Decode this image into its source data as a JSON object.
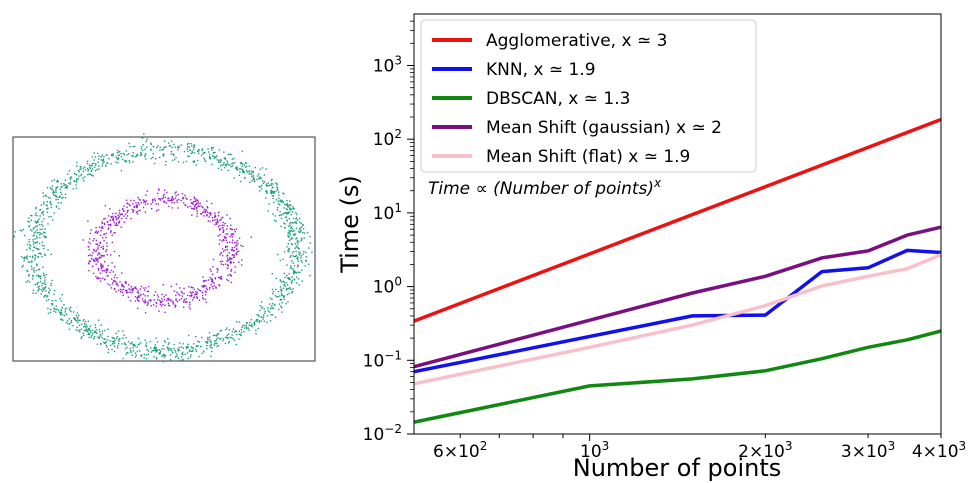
{
  "chart_data": [
    {
      "type": "scatter",
      "title": "",
      "axes_visible": false,
      "series": [
        {
          "name": "",
          "color": "#1a9e77",
          "shape": "outer-ring",
          "radius_x": 1.0,
          "radius_y": 1.0,
          "count": 1500
        },
        {
          "name": "",
          "color": "#9b1fd1",
          "shape": "inner-ring",
          "radius_x": 0.5,
          "radius_y": 0.5,
          "count": 800
        }
      ]
    },
    {
      "type": "line",
      "title": "",
      "xlabel": "Number of points",
      "ylabel": "Time (s)",
      "xscale": "log",
      "yscale": "log",
      "xlim": [
        500,
        4000
      ],
      "ylim": [
        0.01,
        5000
      ],
      "x_major_ticks": [
        {
          "value": 1000,
          "mant": "10",
          "exp": "3"
        }
      ],
      "x_minor_tick_values": [
        600,
        700,
        800,
        900,
        2000,
        3000,
        4000
      ],
      "x_minor_labels": [
        {
          "value": 600,
          "mant": "6×10",
          "exp": "2"
        },
        {
          "value": 2000,
          "mant": "2×10",
          "exp": "3"
        },
        {
          "value": 3000,
          "mant": "3×10",
          "exp": "3"
        },
        {
          "value": 4000,
          "mant": "4×10",
          "exp": "3"
        }
      ],
      "y_ticks": [
        {
          "value": 0.01,
          "mant": "10",
          "exp": "−2"
        },
        {
          "value": 0.1,
          "mant": "10",
          "exp": "−1"
        },
        {
          "value": 1,
          "mant": "10",
          "exp": "0"
        },
        {
          "value": 10,
          "mant": "10",
          "exp": "1"
        },
        {
          "value": 100,
          "mant": "10",
          "exp": "2"
        },
        {
          "value": 1000,
          "mant": "10",
          "exp": "3"
        }
      ],
      "legend_position": "upper-left",
      "annotation": "Time ∝ (Number of points)",
      "annotation_exp": "x",
      "series": [
        {
          "name": "Agglomerative, x ≃ 3",
          "color": "#ee1111",
          "x": [
            500,
            4000
          ],
          "y": [
            0.34,
            185
          ]
        },
        {
          "name": "KNN, x ≃ 1.9",
          "color": "#1111ee",
          "x": [
            500,
            1500,
            2000,
            2500,
            3000,
            3500,
            4000
          ],
          "y": [
            0.07,
            0.4,
            0.41,
            1.6,
            1.8,
            3.1,
            2.9
          ]
        },
        {
          "name": "DBSCAN, x ≃ 1.3",
          "color": "#118811",
          "x": [
            500,
            1000,
            1500,
            2000,
            2500,
            3000,
            3500,
            4000
          ],
          "y": [
            0.0145,
            0.045,
            0.056,
            0.072,
            0.105,
            0.15,
            0.19,
            0.25
          ]
        },
        {
          "name": "Mean Shift (gaussian) x ≃ 2",
          "color": "#7a1080",
          "x": [
            500,
            1500,
            2000,
            2500,
            3000,
            3500,
            4000
          ],
          "y": [
            0.082,
            0.82,
            1.38,
            2.45,
            3.05,
            5.0,
            6.4
          ]
        },
        {
          "name": "Mean Shift (flat) x ≃ 1.9",
          "color": "#f7c0cb",
          "x": [
            500,
            1000,
            1500,
            2000,
            2500,
            3000,
            3500,
            4000
          ],
          "y": [
            0.048,
            0.15,
            0.3,
            0.55,
            1.02,
            1.38,
            1.75,
            2.7
          ]
        }
      ]
    }
  ]
}
